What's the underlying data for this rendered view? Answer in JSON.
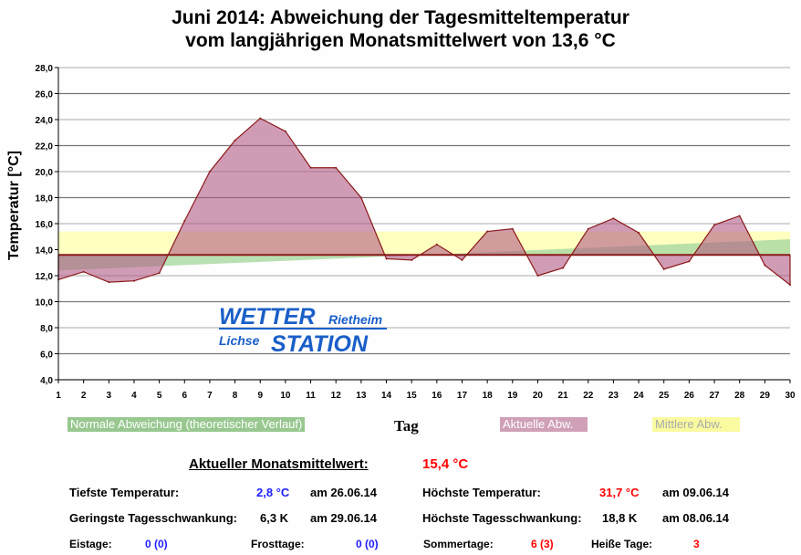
{
  "chart_data": {
    "type": "area",
    "title_line1": "Juni 2014: Abweichung der Tagesmitteltemperatur",
    "title_line2": "vom langjährigen Monatsmittelwert von 13,6 °C",
    "xlabel": "Tag",
    "ylabel": "Temperatur [°C]",
    "ylim": [
      4,
      28
    ],
    "y_ticks": [
      "4,0",
      "6,0",
      "8,0",
      "10,0",
      "12,0",
      "14,0",
      "16,0",
      "18,0",
      "20,0",
      "22,0",
      "24,0",
      "26,0",
      "28,0"
    ],
    "x": [
      1,
      2,
      3,
      4,
      5,
      6,
      7,
      8,
      9,
      10,
      11,
      12,
      13,
      14,
      15,
      16,
      17,
      18,
      19,
      20,
      21,
      22,
      23,
      24,
      25,
      26,
      27,
      28,
      29,
      30
    ],
    "baseline": 13.6,
    "series": [
      {
        "name": "Aktuelle Abw.",
        "values": [
          11.7,
          12.3,
          11.5,
          11.6,
          12.2,
          16.2,
          20.0,
          22.4,
          24.1,
          23.1,
          20.3,
          20.3,
          18.0,
          13.3,
          13.2,
          14.4,
          13.2,
          15.4,
          15.6,
          12.0,
          12.6,
          15.6,
          16.4,
          15.3,
          12.5,
          13.1,
          15.9,
          16.6,
          12.8,
          11.3
        ],
        "color": "#b05a84"
      },
      {
        "name": "Mittlere Abw.",
        "range": [
          13.6,
          15.4
        ],
        "color": "#ffffc0"
      },
      {
        "name": "Normale Abweichung (theoretischer Verlauf)",
        "start": 12.4,
        "end": 14.8,
        "color": "#a8d8a0"
      }
    ],
    "grid": true,
    "legend": "bottom"
  },
  "logo": {
    "line1": "WETTER",
    "line1b": "Rietheim",
    "line2a": "Lichse",
    "line2": "STATION"
  },
  "legend": {
    "normal": "Normale Abweichung (theoretischer Verlauf)",
    "aktuell": "Aktuelle Abw.",
    "mittel": "Mittlere Abw."
  },
  "stats": {
    "monthly_label": "Aktueller Monatsmittelwert:",
    "monthly_value": "15,4 °C",
    "min_label": "Tiefste Temperatur:",
    "min_value": "2,8 °C",
    "min_date": "am 26.06.14",
    "max_label": "Höchste Temperatur:",
    "max_value": "31,7 °C",
    "max_date": "am 09.06.14",
    "minswing_label": "Geringste Tagesschwankung:",
    "minswing_value": "6,3 K",
    "minswing_date": "am 29.06.14",
    "maxswing_label": "Höchste Tagesschwankung:",
    "maxswing_value": "18,8 K",
    "maxswing_date": "am 08.06.14",
    "eistage_label": "Eistage:",
    "eistage_value": "0 (0)",
    "frosttage_label": "Frosttage:",
    "frosttage_value": "0 (0)",
    "sommertage_label": "Sommertage:",
    "sommertage_value": "6 (3)",
    "heisse_label": "Heiße Tage:",
    "heisse_value": "3"
  }
}
